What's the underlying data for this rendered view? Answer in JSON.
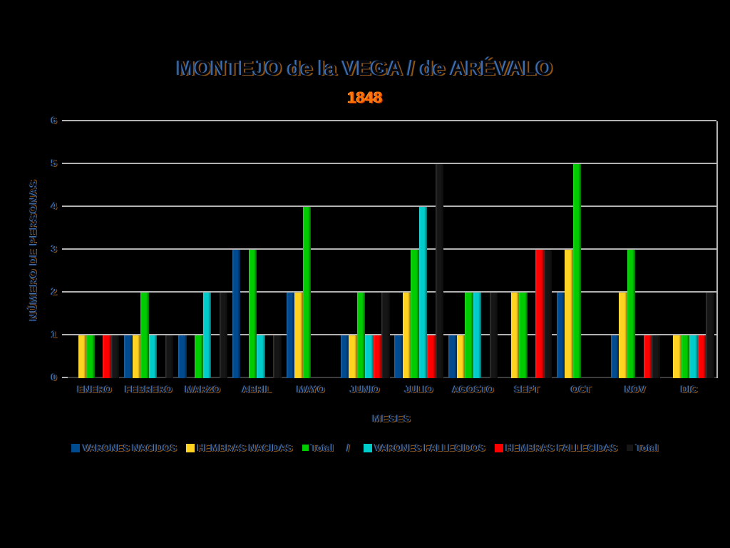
{
  "title": "MONTEJO de la VEGA / de ARÉVALO",
  "subtitle": "1848",
  "chart_data": {
    "type": "bar",
    "title": "MONTEJO de la VEGA / de ARÉVALO",
    "subtitle": "1848",
    "xlabel": "MESES",
    "ylabel": "NÚMERO DE PERSONAS",
    "ylim": [
      0,
      6
    ],
    "yticks": [
      0,
      1,
      2,
      3,
      4,
      5,
      6
    ],
    "grid": true,
    "legend_position": "bottom",
    "legend_separator": "/",
    "categories": [
      "ENERO",
      "FEBRERO",
      "MARZO",
      "ABRIL",
      "MAYO",
      "JUNIO",
      "JULIO",
      "AGOSTO",
      "SEPT",
      "OCT",
      "NOV",
      "DIC"
    ],
    "series": [
      {
        "name": "VARONES NACIDOS",
        "color": "#004a8f",
        "swatch_small": false,
        "values": [
          0,
          1,
          1,
          3,
          2,
          1,
          1,
          1,
          0,
          2,
          1,
          0
        ]
      },
      {
        "name": "HEMBRAS NACIDAS",
        "color": "#ffd320",
        "swatch_small": false,
        "values": [
          1,
          1,
          0,
          0,
          2,
          1,
          2,
          1,
          2,
          3,
          2,
          1
        ]
      },
      {
        "name": "Total",
        "color": "#00cc00",
        "swatch_small": true,
        "values": [
          1,
          2,
          1,
          3,
          4,
          2,
          3,
          2,
          2,
          5,
          3,
          1
        ]
      },
      {
        "name": "VARONES FALLECIDOS",
        "color": "#00cccc",
        "swatch_small": false,
        "values": [
          0,
          1,
          2,
          1,
          0,
          1,
          4,
          2,
          0,
          0,
          0,
          1
        ]
      },
      {
        "name": "HEMBRAS FALLECIDAS",
        "color": "#ff0000",
        "swatch_small": false,
        "values": [
          1,
          0,
          0,
          0,
          0,
          1,
          1,
          0,
          3,
          0,
          1,
          1
        ]
      },
      {
        "name": "Total",
        "color": "#161616",
        "swatch_small": true,
        "values": [
          1,
          1,
          2,
          1,
          0,
          2,
          5,
          2,
          3,
          0,
          1,
          2
        ]
      }
    ]
  },
  "colors": {
    "background": "#000000",
    "gridline": "#b3b3b3",
    "subtitle_orange": "#ff6f00"
  }
}
